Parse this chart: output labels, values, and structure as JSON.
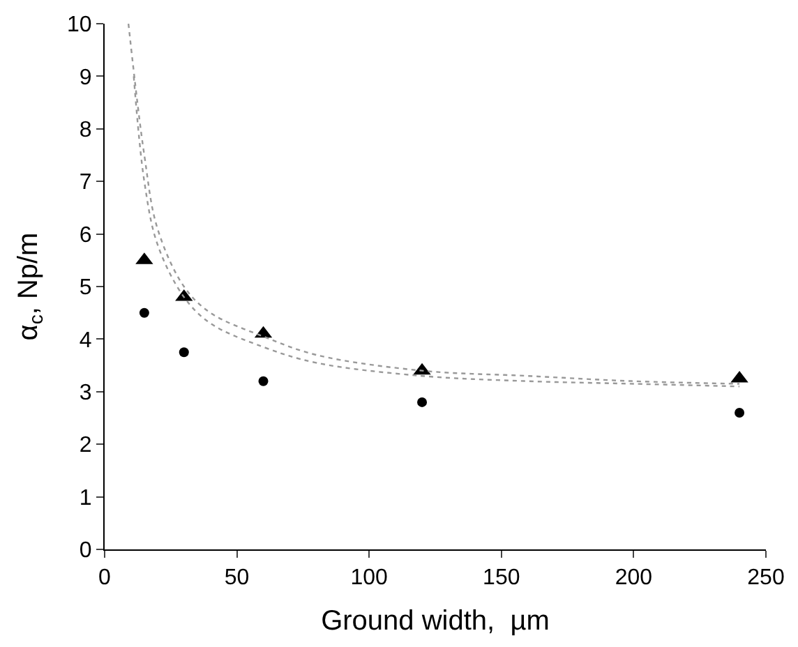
{
  "chart_data": {
    "type": "scatter",
    "xlabel": "Ground width,  µm",
    "ylabel": "α$_{c}$, Np/m",
    "xlim": [
      0,
      250
    ],
    "xticks": [
      0,
      50,
      100,
      150,
      200,
      250
    ],
    "ylim": [
      0,
      10
    ],
    "yticks": [
      0,
      1,
      2,
      3,
      4,
      5,
      6,
      7,
      8,
      9,
      10
    ],
    "series": [
      {
        "marker": "triangle",
        "color": "#000000",
        "x": [
          15,
          30,
          60,
          120,
          240
        ],
        "values": [
          5.5,
          4.8,
          4.1,
          3.4,
          3.25
        ]
      },
      {
        "marker": "circle",
        "color": "#000000",
        "x": [
          15,
          30,
          60,
          120,
          240
        ],
        "values": [
          4.5,
          3.75,
          3.2,
          2.8,
          2.6
        ]
      },
      {
        "type": "line",
        "marker": "none",
        "line_style": "dotted",
        "color": "#999999",
        "x": [
          11,
          15,
          20,
          30,
          40,
          60,
          80,
          120,
          160,
          200,
          240
        ],
        "values": [
          9,
          7,
          5.8,
          4.8,
          4.3,
          3.85,
          3.55,
          3.3,
          3.2,
          3.15,
          3.1
        ]
      },
      {
        "type": "line",
        "marker": "none",
        "line_style": "dotted",
        "color": "#999999",
        "x": [
          9,
          15,
          20,
          30,
          40,
          60,
          80,
          120,
          160,
          200,
          240
        ],
        "values": [
          10,
          7.5,
          6.1,
          5.0,
          4.5,
          4.05,
          3.7,
          3.4,
          3.3,
          3.2,
          3.15
        ]
      }
    ]
  }
}
